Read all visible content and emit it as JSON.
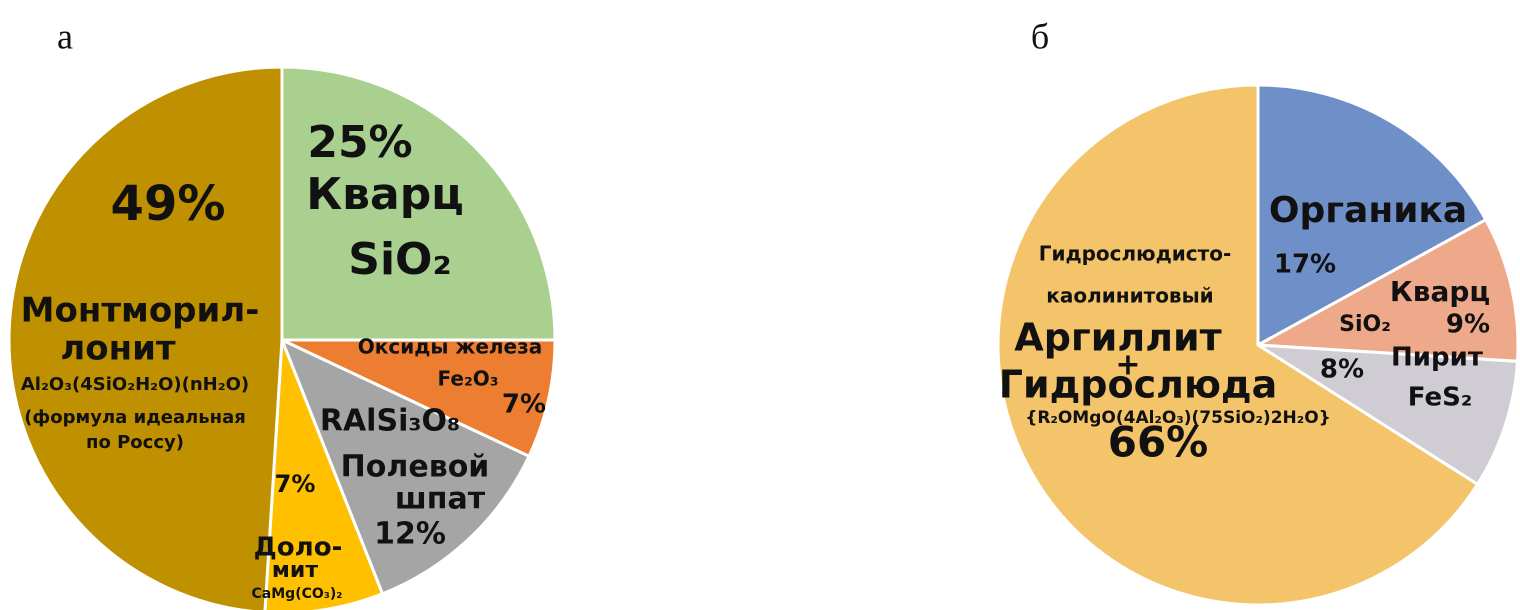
{
  "chart_data": [
    {
      "type": "pie",
      "title": "а",
      "values": [
        25,
        7,
        12,
        7,
        49
      ],
      "value_labels": [
        "25%",
        "7%",
        "12%",
        "7%",
        "49%"
      ],
      "labels": [
        [
          "Кварц",
          "SiO₂"
        ],
        [
          "Оксиды железа",
          "Fe₂O₃"
        ],
        [
          "RAlSi₃O₈",
          "Полевой",
          "шпат"
        ],
        [
          "Доло-",
          "мит",
          "CaMg(CO₃)₂"
        ],
        [
          "Монтморил-",
          "лонит",
          "Al₂O₃(4SiO₂H₂O)(nH₂O)",
          "(формула идеальная",
          "по Россу)"
        ]
      ],
      "colors": [
        "#a9d08e",
        "#ed7d31",
        "#a5a5a5",
        "#ffc000",
        "#bf9000"
      ]
    },
    {
      "type": "pie",
      "title": "б",
      "values": [
        17,
        9,
        8,
        66
      ],
      "value_labels": [
        "17%",
        "9%",
        "8%",
        "66%"
      ],
      "labels": [
        [
          "Органика"
        ],
        [
          "Кварц",
          "SiO₂"
        ],
        [
          "Пирит",
          "FeS₂"
        ],
        [
          "Гидрослюдисто-",
          "каолинитовый",
          "Аргиллит",
          "+",
          "Гидрослюда",
          "{R₂OMgO(4Al₂O₃)(75SiO₂)2H₂O}"
        ]
      ],
      "colors": [
        "#6f8fc9",
        "#eea98a",
        "#d0ccd4",
        "#f4c46a"
      ]
    }
  ]
}
